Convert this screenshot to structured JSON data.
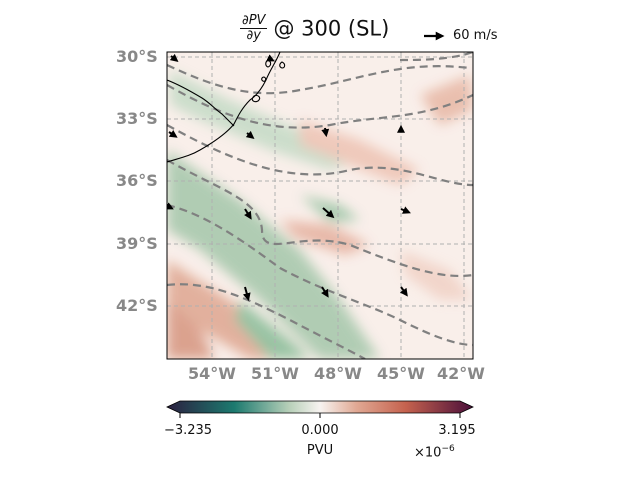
{
  "title": {
    "numerator": "∂PV",
    "denominator": "∂y",
    "rest": "@ 300 (SL)"
  },
  "quiver_key": {
    "label": "60 m/s"
  },
  "map": {
    "lat_labels": [
      "30°S",
      "33°S",
      "36°S",
      "39°S",
      "42°S"
    ],
    "lon_labels": [
      "54°W",
      "51°W",
      "48°W",
      "45°W",
      "42°W"
    ]
  },
  "colorbar": {
    "ticks": [
      "−3.235",
      "0.000",
      "3.195"
    ],
    "label": "PVU",
    "exponent": "×10",
    "exponent_power": "−6",
    "colormap": [
      "#2b1f3f",
      "#1c7a6f",
      "#f7f3f0",
      "#c5624e",
      "#4a0f3a"
    ]
  },
  "colors": {
    "contour": "#808080",
    "grid": "#b0b0b0",
    "coast": "#000000",
    "tick_label": "#888888"
  }
}
